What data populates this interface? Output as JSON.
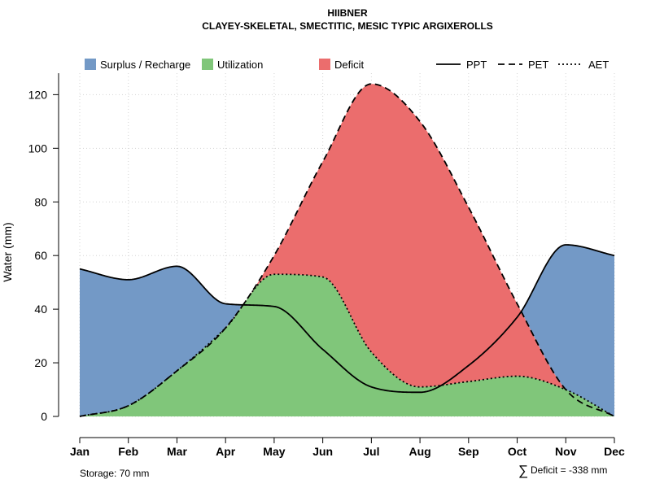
{
  "chart_data": {
    "type": "area",
    "title": "HIIBNER",
    "subtitle": "CLAYEY-SKELETAL, SMECTITIC, MESIC TYPIC ARGIXEROLLS",
    "xlabel": "",
    "ylabel": "Water (mm)",
    "categories": [
      "Jan",
      "Feb",
      "Mar",
      "Apr",
      "May",
      "Jun",
      "Jul",
      "Aug",
      "Sep",
      "Oct",
      "Nov",
      "Dec"
    ],
    "ylim": [
      0,
      128
    ],
    "yticks": [
      0,
      20,
      40,
      60,
      80,
      100,
      120
    ],
    "grid": true,
    "legend_position": "top",
    "series": [
      {
        "name": "PPT",
        "style": "solid",
        "values": [
          55,
          51,
          56,
          42,
          41,
          25,
          11,
          9,
          19,
          37,
          64,
          60
        ]
      },
      {
        "name": "PET",
        "style": "dashed",
        "values": [
          0,
          4,
          17,
          33,
          60,
          95,
          124,
          110,
          78,
          42,
          10,
          0
        ]
      },
      {
        "name": "AET",
        "style": "dotted",
        "values": [
          0,
          4,
          17,
          33,
          53,
          52,
          24,
          11,
          13,
          15,
          10,
          0
        ]
      }
    ],
    "areas": [
      {
        "name": "Surplus / Recharge",
        "color": "#7399C6"
      },
      {
        "name": "Utilization",
        "color": "#80C67A"
      },
      {
        "name": "Deficit",
        "color": "#EB6D6D"
      }
    ],
    "annotations": {
      "storage": "Storage: 70 mm",
      "deficit_symbol": "∑",
      "deficit": "Deficit = -338 mm"
    }
  }
}
